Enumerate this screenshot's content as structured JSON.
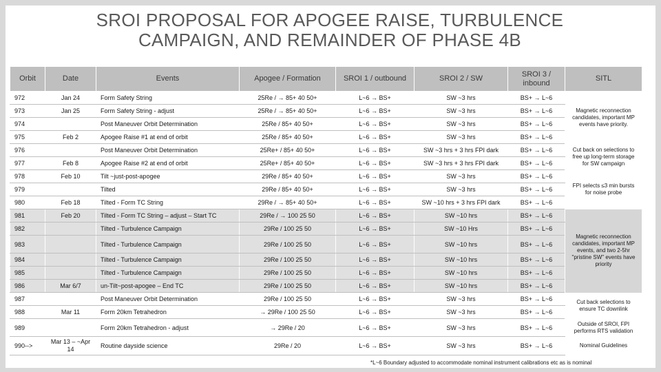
{
  "title_line1": "SROI PROPOSAL FOR APOGEE RAISE, TURBULENCE",
  "title_line2": "CAMPAIGN, AND REMAINDER OF PHASE 4B",
  "headers": [
    "Orbit",
    "Date",
    "Events",
    "Apogee / Formation",
    "SROI 1 / outbound",
    "SROI 2 / SW",
    "SROI 3 / inbound",
    "SITL"
  ],
  "sitl_notes": [
    "Magnetic reconnection candidates, important MP events have priority.",
    "Cut back on selections to free up long-term storage for SW campaign",
    "FPI selects ≤3 min bursts for noise probe",
    "Magnetic reconnection candidates, important MP events, and two 2-5hr \"pristine SW\" events have priority",
    "Cut back selections to ensure TC downlink",
    "Outside of SROI, FPI performs RTS validation",
    "Nominal Guidelines"
  ],
  "rows": [
    {
      "orbit": "972",
      "date": "Jan 24",
      "events": "Form Safety String",
      "apogee": "25Re / → 85+ 40 50+",
      "sroi1": "L~6 → BS+",
      "sroi2": "SW ~3 hrs",
      "sroi3": "BS+ → L~6"
    },
    {
      "orbit": "973",
      "date": "Jan 25",
      "events": "Form Safety String - adjust",
      "apogee": "25Re / → 85+ 40 50+",
      "sroi1": "L~6 → BS+",
      "sroi2": "SW ~3 hrs",
      "sroi3": "BS+ → L~6"
    },
    {
      "orbit": "974",
      "date": "",
      "events": "Post Maneuver Orbit Determination",
      "apogee": "25Re / 85+ 40 50+",
      "sroi1": "L~6 → BS+",
      "sroi2": "SW ~3 hrs",
      "sroi3": "BS+ → L~6"
    },
    {
      "orbit": "975",
      "date": "Feb 2",
      "events": "Apogee Raise #1 at end of orbit",
      "apogee": "25Re / 85+ 40 50+",
      "sroi1": "L~6 → BS+",
      "sroi2": "SW ~3 hrs",
      "sroi3": "BS+ → L~6"
    },
    {
      "orbit": "976",
      "date": "",
      "events": "Post Maneuver Orbit Determination",
      "apogee": "25Re+ / 85+ 40 50+",
      "sroi1": "L~6 → BS+",
      "sroi2": "SW ~3 hrs + 3 hrs FPI dark",
      "sroi3": "BS+ → L~6"
    },
    {
      "orbit": "977",
      "date": "Feb 8",
      "events": "Apogee Raise #2 at end of orbit",
      "apogee": "25Re+ / 85+ 40 50+",
      "sroi1": "L~6 → BS+",
      "sroi2": "SW ~3 hrs + 3 hrs FPI dark",
      "sroi3": "BS+ → L~6"
    },
    {
      "orbit": "978",
      "date": "Feb 10",
      "events": "Tilt ~just-post-apogee",
      "apogee": "29Re / 85+ 40 50+",
      "sroi1": "L~6 → BS+",
      "sroi2": "SW ~3 hrs",
      "sroi3": "BS+ → L~6"
    },
    {
      "orbit": "979",
      "date": "",
      "events": "Tilted",
      "apogee": "29Re / 85+ 40 50+",
      "sroi1": "L~6 → BS+",
      "sroi2": "SW ~3 hrs",
      "sroi3": "BS+ → L~6"
    },
    {
      "orbit": "980",
      "date": "Feb 18",
      "events": "Tilted - Form TC String",
      "apogee": "29Re / → 85+ 40 50+",
      "sroi1": "L~6 → BS+",
      "sroi2": "SW ~10 hrs + 3 hrs FPI dark",
      "sroi3": "BS+ → L~6"
    },
    {
      "orbit": "981",
      "date": "Feb 20",
      "events": "Tilted - Form TC String – adjust – Start TC",
      "apogee": "29Re / → 100 25 50",
      "sroi1": "L~6 → BS+",
      "sroi2": "SW ~10 hrs",
      "sroi3": "BS+ → L~6"
    },
    {
      "orbit": "982",
      "date": "",
      "events": "Tilted - Turbulence Campaign",
      "apogee": "29Re / 100 25 50",
      "sroi1": "L~6 → BS+",
      "sroi2": "SW ~10 Hrs",
      "sroi3": "BS+ → L~6"
    },
    {
      "orbit": "983",
      "date": "",
      "events": "Tilted - Turbulence Campaign",
      "apogee": "29Re / 100 25 50",
      "sroi1": "L~6 → BS+",
      "sroi2": "SW ~10 hrs",
      "sroi3": "BS+ → L~6"
    },
    {
      "orbit": "984",
      "date": "",
      "events": "Tilted - Turbulence Campaign",
      "apogee": "29Re / 100 25 50",
      "sroi1": "L~6 → BS+",
      "sroi2": "SW ~10 hrs",
      "sroi3": "BS+ → L~6"
    },
    {
      "orbit": "985",
      "date": "",
      "events": "Tilted - Turbulence Campaign",
      "apogee": "29Re / 100 25 50",
      "sroi1": "L~6 → BS+",
      "sroi2": "SW ~10 hrs",
      "sroi3": "BS+ → L~6"
    },
    {
      "orbit": "986",
      "date": "Mar 6/7",
      "events": "un-Tilt~post-apogee – End TC",
      "apogee": "29Re / 100 25 50",
      "sroi1": "L~6 → BS+",
      "sroi2": "SW ~10 hrs",
      "sroi3": "BS+ → L~6"
    },
    {
      "orbit": "987",
      "date": "",
      "events": "Post Maneuver Orbit Determination",
      "apogee": "29Re / 100 25 50",
      "sroi1": "L~6 → BS+",
      "sroi2": "SW ~3 hrs",
      "sroi3": "BS+ → L~6"
    },
    {
      "orbit": "988",
      "date": "Mar 11",
      "events": "Form 20km Tetrahedron",
      "apogee": "→ 29Re / 100 25 50",
      "sroi1": "L~6 → BS+",
      "sroi2": "SW ~3 hrs",
      "sroi3": "BS+ → L~6"
    },
    {
      "orbit": "989",
      "date": "",
      "events": "Form 20km Tetrahedron - adjust",
      "apogee": "→ 29Re / 20",
      "sroi1": "L~6 → BS+",
      "sroi2": "SW ~3 hrs",
      "sroi3": "BS+ → L~6"
    },
    {
      "orbit": "990-->",
      "date": "Mar 13 – ~Apr 14",
      "events": "Routine dayside science",
      "apogee": "29Re / 20",
      "sroi1": "L~6 → BS+",
      "sroi2": "SW ~3 hrs",
      "sroi3": "BS+ → L~6"
    }
  ],
  "footnote": "*L~6 Boundary adjusted to accommodate nominal instrument calibrations etc as is nominal"
}
